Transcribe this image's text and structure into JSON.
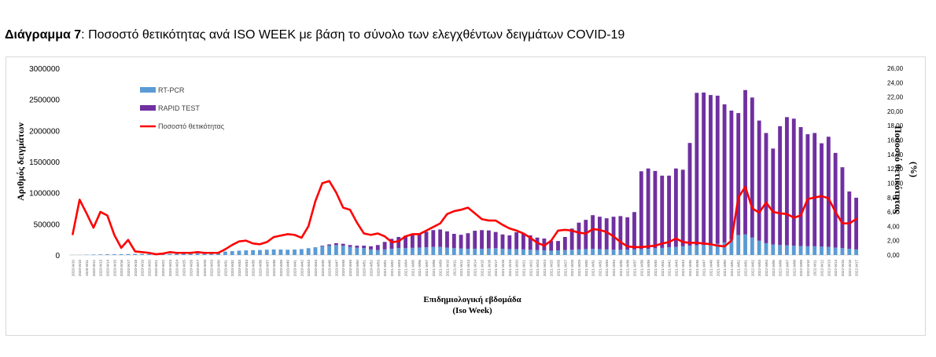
{
  "caption": {
    "label": "Διάγραμμα 7",
    "text": ": Ποσοστό θετικότητας ανά ISO WEEK με βάση το σύνολο των ελεγχθέντων δειγμάτων COVID-19"
  },
  "chart_data": {
    "type": "bar",
    "stacked": true,
    "title": "",
    "xlabel": "Επιδημιολογική εβδομάδα\n(Iso Week)",
    "ylabel": "Αριθμός δειγμάτων",
    "y2label": "Ποσοστό θετικότητας\n(%)",
    "ylim": [
      0,
      3000000
    ],
    "y2lim": [
      0,
      26
    ],
    "yticks": [
      "0",
      "500000",
      "1000000",
      "1500000",
      "2000000",
      "2500000",
      "3000000"
    ],
    "y2ticks": [
      "0,00",
      "2,00",
      "4,00",
      "6,00",
      "8,00",
      "10,00",
      "12,00",
      "14,00",
      "16,00",
      "18,00",
      "20,00",
      "22,00",
      "24,00",
      "26,00"
    ],
    "legend_position": "top-left",
    "colors": {
      "rtpcr": "#5b9bd5",
      "rapid": "#7030a0",
      "positivity": "#ff0000"
    },
    "categories": [
      "2020-W10",
      "2020-W10",
      "2020-W11",
      "2020-W12",
      "2020-W13",
      "2020-W14",
      "2020-W15",
      "2020-W16",
      "2020-W17",
      "2020-W18",
      "2020-W19",
      "2020-W20",
      "2020-W21",
      "2020-W22",
      "2020-W23",
      "2020-W24",
      "2020-W25",
      "2020-W26",
      "2020-W27",
      "2020-W28",
      "2020-W29",
      "2020-W30",
      "2020-W31",
      "2020-W32",
      "2020-W33",
      "2020-W34",
      "2020-W35",
      "2020-W36",
      "2020-W37",
      "2020-W38",
      "2020-W39",
      "2020-W40",
      "2020-W41",
      "2020-W42",
      "2020-W43",
      "2020-W44",
      "2020-W45",
      "2020-W46",
      "2020-W47",
      "2020-W48",
      "2020-W49",
      "2020-W50",
      "2020-W51",
      "2020-W52",
      "2020-W53",
      "2021-W01",
      "2021-W02",
      "2021-W03",
      "2021-W04",
      "2021-W05",
      "2021-W06",
      "2021-W07",
      "2021-W08",
      "2021-W09",
      "2021-W10",
      "2021-W11",
      "2021-W12",
      "2021-W13",
      "2021-W14",
      "2021-W15",
      "2021-W16",
      "2021-W17",
      "2021-W18",
      "2021-W19",
      "2021-W20",
      "2021-W21",
      "2021-W22",
      "2021-W23",
      "2021-W24",
      "2021-W25",
      "2021-W26",
      "2021-W27",
      "2021-W28",
      "2021-W29",
      "2021-W30",
      "2021-W31",
      "2021-W32",
      "2021-W33",
      "2021-W34",
      "2021-W35",
      "2021-W36",
      "2021-W37",
      "2021-W38",
      "2021-W39",
      "2021-W40",
      "2021-W41",
      "2021-W42",
      "2021-W43",
      "2021-W44",
      "2021-W45",
      "2021-W46",
      "2021-W47",
      "2021-W48",
      "2021-W49",
      "2021-W50",
      "2021-W51",
      "2021-W52",
      "2022-W01",
      "2022-W02",
      "2022-W03",
      "2022-W04",
      "2022-W05",
      "2022-W06",
      "2022-W07",
      "2022-W08",
      "2022-W09",
      "2022-W10",
      "2022-W11",
      "2022-W12",
      "2022-W13",
      "2022-W14",
      "2022-W15",
      "2022-W16",
      "2022-W17"
    ],
    "series": [
      {
        "name": "RT-PCR",
        "kind": "bar",
        "axis": "left",
        "values": [
          2000,
          3000,
          5000,
          8000,
          10000,
          12000,
          12000,
          13000,
          15000,
          17000,
          17000,
          16000,
          15000,
          17000,
          18000,
          20000,
          22000,
          25000,
          28000,
          32000,
          38000,
          45000,
          55000,
          62000,
          70000,
          75000,
          78000,
          80000,
          85000,
          90000,
          88000,
          85000,
          88000,
          95000,
          110000,
          125000,
          140000,
          150000,
          160000,
          150000,
          130000,
          120000,
          110000,
          90000,
          80000,
          90000,
          100000,
          110000,
          110000,
          115000,
          120000,
          125000,
          130000,
          130000,
          120000,
          110000,
          105000,
          100000,
          100000,
          100000,
          105000,
          110000,
          100000,
          95000,
          95000,
          90000,
          85000,
          80000,
          75000,
          70000,
          75000,
          80000,
          85000,
          90000,
          95000,
          100000,
          95000,
          90000,
          85000,
          85000,
          85000,
          90000,
          95000,
          100000,
          110000,
          115000,
          125000,
          130000,
          140000,
          150000,
          155000,
          160000,
          170000,
          180000,
          200000,
          250000,
          320000,
          330000,
          280000,
          230000,
          190000,
          170000,
          160000,
          155000,
          150000,
          145000,
          140000,
          140000,
          135000,
          130000,
          120000,
          110000,
          100000,
          90000
        ]
      },
      {
        "name": "RAPID TEST",
        "kind": "bar",
        "axis": "left",
        "values": [
          0,
          0,
          0,
          0,
          0,
          0,
          0,
          0,
          0,
          0,
          0,
          0,
          0,
          0,
          0,
          0,
          0,
          0,
          0,
          0,
          0,
          0,
          0,
          0,
          0,
          0,
          0,
          0,
          0,
          0,
          0,
          0,
          0,
          0,
          0,
          0,
          10000,
          20000,
          30000,
          30000,
          30000,
          30000,
          40000,
          50000,
          80000,
          120000,
          160000,
          180000,
          200000,
          220000,
          230000,
          250000,
          270000,
          280000,
          260000,
          230000,
          220000,
          250000,
          290000,
          300000,
          290000,
          260000,
          230000,
          220000,
          270000,
          250000,
          230000,
          200000,
          190000,
          160000,
          150000,
          210000,
          340000,
          430000,
          470000,
          540000,
          520000,
          500000,
          530000,
          540000,
          520000,
          600000,
          1250000,
          1290000,
          1240000,
          1160000,
          1150000,
          1260000,
          1230000,
          1650000,
          2450000,
          2450000,
          2400000,
          2380000,
          2220000,
          2070000,
          1960000,
          2320000,
          2250000,
          1930000,
          1770000,
          1540000,
          1910000,
          2060000,
          2040000,
          1910000,
          1800000,
          1820000,
          1660000,
          1770000,
          1520000,
          1300000,
          920000,
          830000
        ]
      },
      {
        "name": "Ποσοστό θετικότητας",
        "kind": "line",
        "axis": "right",
        "values": [
          2.9,
          7.7,
          5.8,
          3.8,
          6.0,
          5.5,
          2.8,
          1.0,
          2.1,
          0.5,
          0.4,
          0.3,
          0.1,
          0.2,
          0.4,
          0.3,
          0.3,
          0.3,
          0.4,
          0.3,
          0.3,
          0.3,
          0.8,
          1.4,
          1.9,
          2.0,
          1.6,
          1.5,
          1.8,
          2.5,
          2.7,
          2.9,
          2.8,
          2.4,
          4.0,
          7.5,
          10.0,
          10.3,
          8.7,
          6.6,
          6.3,
          4.5,
          3.0,
          2.8,
          3.0,
          2.6,
          1.8,
          1.9,
          2.6,
          2.9,
          2.9,
          3.4,
          3.9,
          4.4,
          5.7,
          6.1,
          6.3,
          6.6,
          5.8,
          5.0,
          4.8,
          4.8,
          4.2,
          3.7,
          3.4,
          3.0,
          2.4,
          1.7,
          1.3,
          2.0,
          3.4,
          3.5,
          3.4,
          3.1,
          3.0,
          3.6,
          3.5,
          3.2,
          2.6,
          1.8,
          1.2,
          1.1,
          1.1,
          1.2,
          1.3,
          1.6,
          1.8,
          2.3,
          1.8,
          1.7,
          1.7,
          1.6,
          1.5,
          1.3,
          1.2,
          2.0,
          8.0,
          9.5,
          6.5,
          5.9,
          7.3,
          6.0,
          5.8,
          5.7,
          5.2,
          5.5,
          7.8,
          8.0,
          8.2,
          7.9,
          6.0,
          4.4,
          4.4,
          5.0
        ]
      }
    ]
  }
}
